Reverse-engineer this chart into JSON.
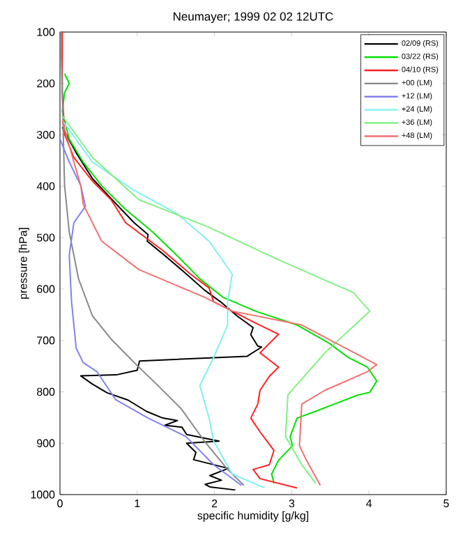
{
  "chart_data": {
    "type": "line",
    "title": "Neumayer; 1999 02 02 12UTC",
    "xlabel": "specific humidity [g/kg]",
    "ylabel": "pressure  [hPa]",
    "xlim": [
      0,
      5
    ],
    "ylim": [
      1000,
      100
    ],
    "xticks": [
      0,
      1,
      2,
      3,
      4,
      5
    ],
    "yticks": [
      100,
      200,
      300,
      400,
      500,
      600,
      700,
      800,
      900,
      1000
    ],
    "grid": false,
    "legend": "top right",
    "marker": "none",
    "line_style": "solid",
    "series": [
      {
        "name": "02/09 (RS)",
        "color": "#000000",
        "x": [
          0.03,
          0.21,
          0.42,
          0.66,
          0.96,
          1.14,
          1.13,
          1.39,
          1.63,
          1.87,
          2.08,
          2.29,
          2.5,
          2.47,
          2.56,
          2.61,
          2.42,
          1.03,
          1.0,
          0.73,
          0.27,
          0.42,
          0.61,
          0.88,
          1.12,
          1.33,
          1.52,
          1.36,
          1.58,
          1.64,
          2.06,
          1.64,
          1.76,
          1.73,
          2.18,
          1.94,
          2.09,
          1.88,
          1.94,
          2.27
        ],
        "values": [
          285,
          335,
          385,
          424,
          471,
          494,
          507,
          539,
          570,
          602,
          625,
          652,
          675,
          689,
          711,
          713,
          731,
          740,
          758,
          767,
          769,
          785,
          802,
          816,
          838,
          851,
          856,
          865,
          869,
          883,
          896,
          900,
          918,
          932,
          949,
          963,
          972,
          980,
          985,
          991
        ]
      },
      {
        "name": "03/22 (RS)",
        "color": "#00e000",
        "x": [
          0.06,
          0.12,
          0.06,
          0.03,
          0.12,
          0.3,
          0.54,
          0.84,
          1.2,
          1.51,
          1.81,
          2.11,
          2.53,
          3.07,
          3.49,
          3.73,
          3.98,
          4.1,
          4.01,
          3.86,
          3.55,
          3.31,
          3.07,
          2.98,
          3.01,
          2.83,
          2.74,
          2.77
        ],
        "values": [
          181,
          200,
          218,
          254,
          308,
          353,
          399,
          444,
          489,
          534,
          580,
          616,
          643,
          670,
          706,
          733,
          752,
          779,
          801,
          806,
          824,
          838,
          851,
          887,
          905,
          933,
          960,
          978
        ]
      },
      {
        "name": "04/10 (RS)",
        "color": "#ff2020",
        "x": [
          0.03,
          0.03,
          0.06,
          0.18,
          0.42,
          0.66,
          0.85,
          1.33,
          1.69,
          1.93,
          1.99,
          2.23,
          2.53,
          2.83,
          2.59,
          2.83,
          2.71,
          2.59,
          2.56,
          2.47,
          2.59,
          2.77,
          2.71,
          2.5,
          2.59,
          3.07
        ],
        "values": [
          100,
          218,
          299,
          344,
          390,
          426,
          471,
          525,
          571,
          598,
          625,
          643,
          666,
          688,
          724,
          752,
          770,
          797,
          824,
          851,
          878,
          914,
          942,
          951,
          969,
          987
        ]
      },
      {
        "name": "+00 (LM)",
        "color": "#888888",
        "x": [
          0.01,
          0.06,
          0.12,
          0.24,
          0.42,
          0.66,
          0.96,
          1.27,
          1.57,
          1.87,
          2.17,
          2.38
        ],
        "values": [
          100,
          399,
          489,
          580,
          652,
          697,
          743,
          788,
          833,
          896,
          951,
          982
        ]
      },
      {
        "name": "+12 (LM)",
        "color": "#8080f0",
        "x": [
          0.0,
          0.12,
          0.27,
          0.33,
          0.18,
          0.12,
          0.15,
          0.21,
          0.3,
          0.48,
          0.72,
          1.14,
          1.63,
          1.99,
          2.35
        ],
        "values": [
          308,
          353,
          399,
          439,
          471,
          534,
          625,
          715,
          743,
          761,
          815,
          851,
          887,
          942,
          982
        ]
      },
      {
        "name": "+24 (LM)",
        "color": "#80f0f0",
        "x": [
          0.03,
          0.42,
          0.96,
          1.51,
          1.93,
          2.23,
          2.17,
          2.17,
          1.99,
          1.81,
          1.93,
          1.99,
          2.23,
          2.65
        ],
        "values": [
          272,
          353,
          408,
          453,
          507,
          571,
          625,
          670,
          733,
          788,
          851,
          896,
          960,
          987
        ]
      },
      {
        "name": "+36 (LM)",
        "color": "#80f080",
        "x": [
          0.03,
          0.42,
          1.02,
          1.93,
          2.83,
          3.8,
          4.01,
          3.43,
          2.95,
          2.92,
          3.13,
          3.31
        ],
        "values": [
          263,
          344,
          426,
          480,
          543,
          607,
          643,
          724,
          806,
          887,
          942,
          978
        ]
      },
      {
        "name": "+48 (LM)",
        "color": "#f07070",
        "x": [
          0.03,
          0.18,
          0.27,
          0.3,
          0.54,
          1.02,
          1.87,
          2.23,
          3.13,
          4.1,
          3.98,
          3.43,
          3.13,
          3.1,
          3.19,
          3.37
        ],
        "values": [
          272,
          353,
          399,
          435,
          507,
          562,
          616,
          643,
          670,
          747,
          761,
          797,
          824,
          905,
          933,
          982
        ]
      }
    ]
  }
}
